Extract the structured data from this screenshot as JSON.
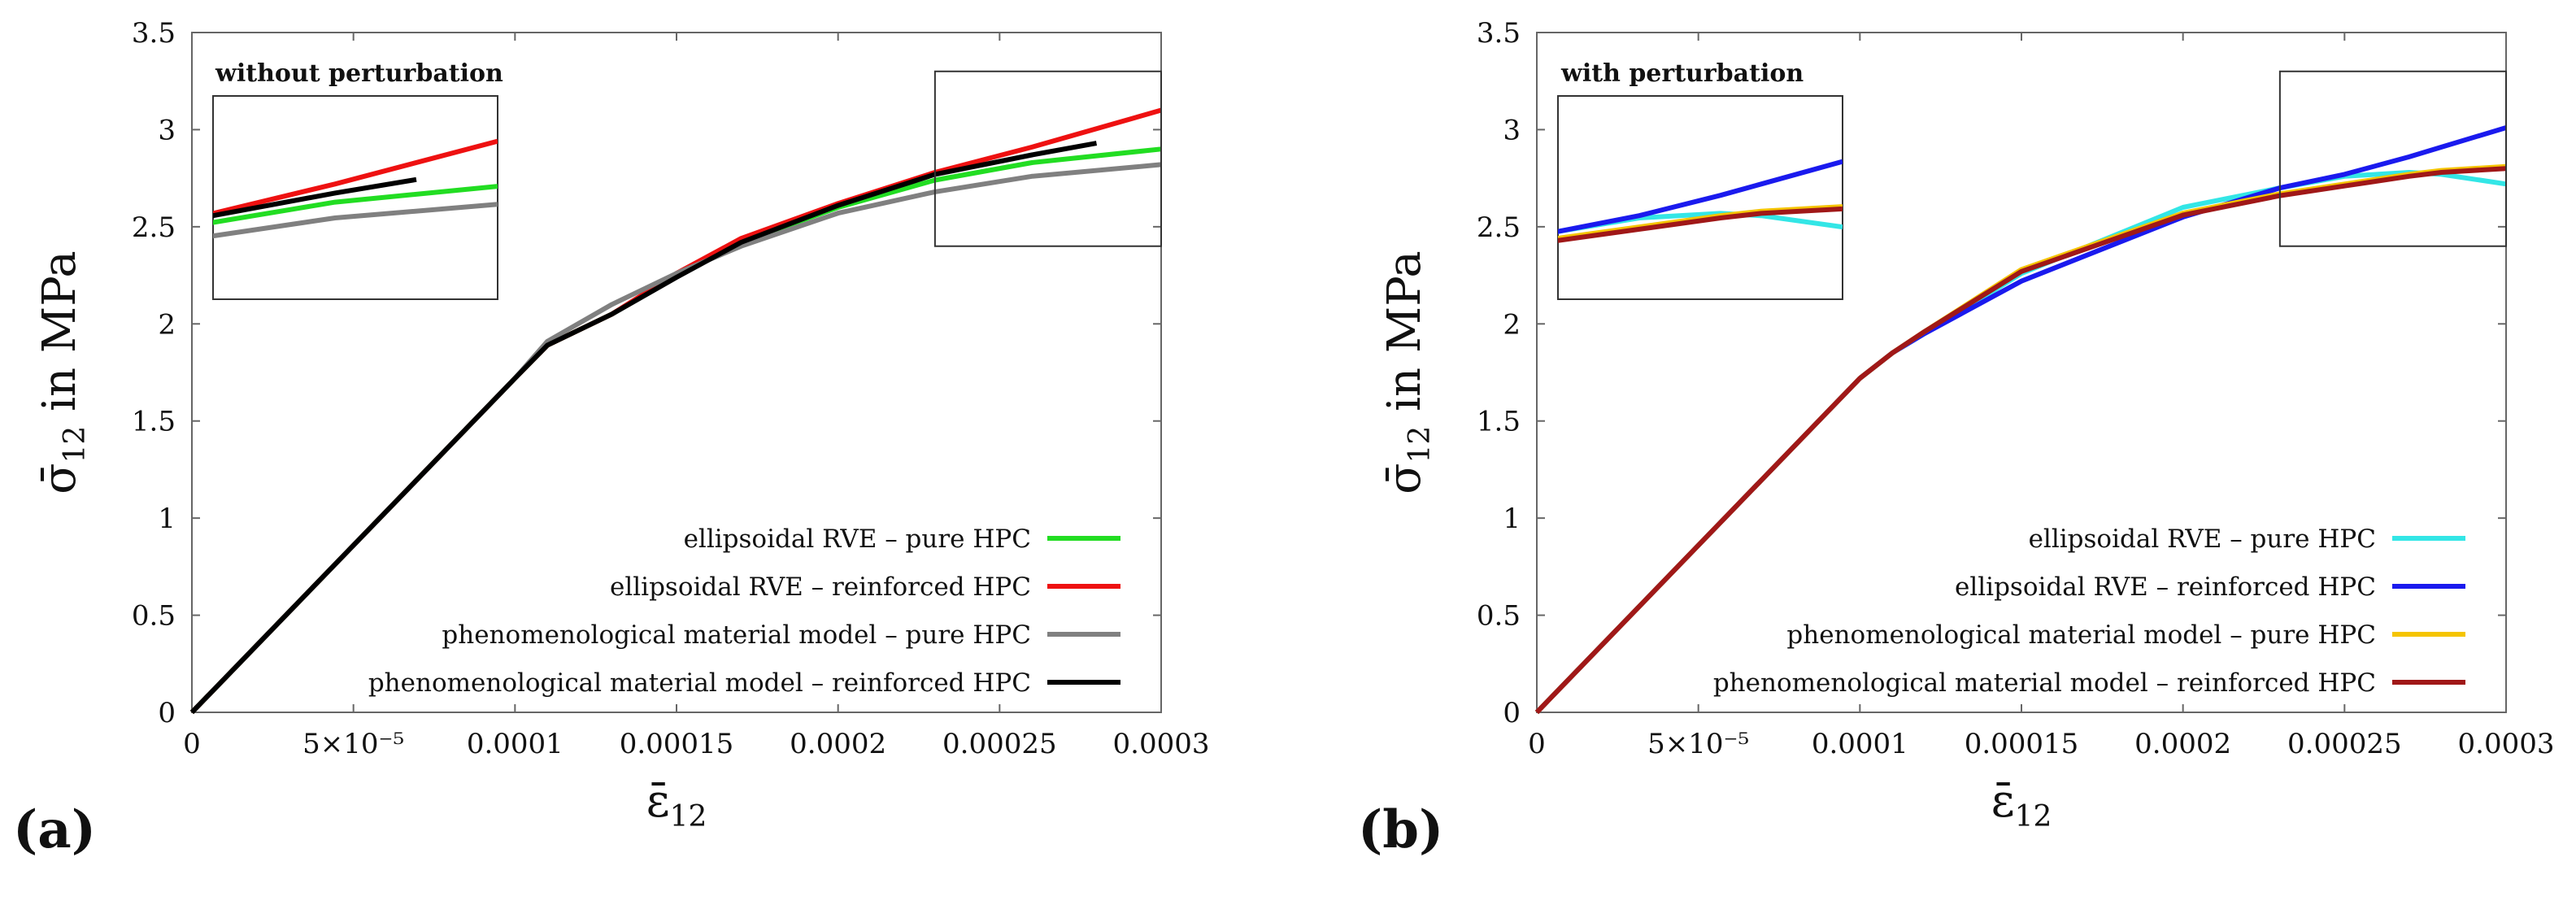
{
  "figure": {
    "panel_labels": [
      "(a)",
      "(b)"
    ]
  },
  "chart_data": [
    {
      "type": "line",
      "panel": "(a)",
      "title": "",
      "xlabel": "ε̄12",
      "ylabel": "σ̄12 in MPa",
      "xlim": [
        0,
        0.0003
      ],
      "ylim": [
        0,
        3.5
      ],
      "xticks": [
        0,
        5e-05,
        0.0001,
        0.00015,
        0.0002,
        0.00025,
        0.0003
      ],
      "xtick_labels": [
        "0",
        "5×10⁻⁵",
        "0.0001",
        "0.00015",
        "0.0002",
        "0.00025",
        "0.0003"
      ],
      "yticks": [
        0,
        0.5,
        1,
        1.5,
        2,
        2.5,
        3,
        3.5
      ],
      "ytick_labels": [
        "0",
        "0.5",
        "1",
        "1.5",
        "2",
        "2.5",
        "3",
        "3.5"
      ],
      "legend_position": "bottom-right",
      "series": [
        {
          "name": "ellipsoidal RVE – pure HPC",
          "color": "#22dd22",
          "x": [
            0,
            5e-05,
            0.0001,
            0.00011,
            0.00013,
            0.00015,
            0.00017,
            0.0002,
            0.00023,
            0.00026,
            0.0003
          ],
          "y": [
            0,
            0.86,
            1.72,
            1.89,
            2.05,
            2.25,
            2.42,
            2.6,
            2.74,
            2.83,
            2.9
          ]
        },
        {
          "name": "ellipsoidal RVE – reinforced HPC",
          "color": "#ee1111",
          "x": [
            0,
            5e-05,
            0.0001,
            0.00011,
            0.00013,
            0.00015,
            0.00017,
            0.0002,
            0.00023,
            0.00026,
            0.0003
          ],
          "y": [
            0,
            0.86,
            1.72,
            1.89,
            2.05,
            2.26,
            2.44,
            2.62,
            2.78,
            2.91,
            3.1
          ]
        },
        {
          "name": "phenomenological material model – pure HPC",
          "color": "#808080",
          "x": [
            0,
            5e-05,
            0.0001,
            0.00011,
            0.00013,
            0.00015,
            0.00017,
            0.0002,
            0.00023,
            0.00026,
            0.0003
          ],
          "y": [
            0,
            0.86,
            1.72,
            1.91,
            2.1,
            2.26,
            2.4,
            2.57,
            2.68,
            2.76,
            2.82
          ]
        },
        {
          "name": "phenomenological material model – reinforced HPC",
          "color": "#000000",
          "x": [
            0,
            5e-05,
            0.0001,
            0.00011,
            0.00013,
            0.00015,
            0.00017,
            0.0002,
            0.00023,
            0.00026,
            0.00028
          ],
          "y": [
            0,
            0.86,
            1.72,
            1.89,
            2.05,
            2.24,
            2.42,
            2.61,
            2.77,
            2.87,
            2.93
          ]
        }
      ],
      "inset": {
        "title": "without perturbation",
        "xlim": [
          0.00023,
          0.0003
        ],
        "ylim": [
          2.4,
          3.3
        ]
      }
    },
    {
      "type": "line",
      "panel": "(b)",
      "title": "",
      "xlabel": "ε̄12",
      "ylabel": "σ̄12 in MPa",
      "xlim": [
        0,
        0.0003
      ],
      "ylim": [
        0,
        3.5
      ],
      "xticks": [
        0,
        5e-05,
        0.0001,
        0.00015,
        0.0002,
        0.00025,
        0.0003
      ],
      "xtick_labels": [
        "0",
        "5×10⁻⁵",
        "0.0001",
        "0.00015",
        "0.0002",
        "0.00025",
        "0.0003"
      ],
      "yticks": [
        0,
        0.5,
        1,
        1.5,
        2,
        2.5,
        3,
        3.5
      ],
      "ytick_labels": [
        "0",
        "0.5",
        "1",
        "1.5",
        "2",
        "2.5",
        "3",
        "3.5"
      ],
      "legend_position": "bottom-right",
      "series": [
        {
          "name": "ellipsoidal RVE – pure HPC",
          "color": "#33e6e6",
          "x": [
            0,
            5e-05,
            0.0001,
            0.00011,
            0.00012,
            0.00015,
            0.0002,
            0.00023,
            0.00025,
            0.00027,
            0.00028,
            0.0003
          ],
          "y": [
            0,
            0.86,
            1.72,
            1.85,
            1.95,
            2.26,
            2.6,
            2.7,
            2.76,
            2.78,
            2.77,
            2.72
          ]
        },
        {
          "name": "ellipsoidal RVE – reinforced HPC",
          "color": "#1a1aee",
          "x": [
            0,
            5e-05,
            0.0001,
            0.00011,
            0.00012,
            0.00015,
            0.0002,
            0.00023,
            0.00025,
            0.00027,
            0.00028,
            0.0003
          ],
          "y": [
            0,
            0.86,
            1.72,
            1.85,
            1.95,
            2.22,
            2.55,
            2.7,
            2.77,
            2.86,
            2.91,
            3.01
          ]
        },
        {
          "name": "phenomenological material model – pure HPC",
          "color": "#f5c400",
          "x": [
            0,
            5e-05,
            0.0001,
            0.00011,
            0.00012,
            0.00015,
            0.0002,
            0.00023,
            0.00025,
            0.00027,
            0.00028,
            0.0003
          ],
          "y": [
            0,
            0.86,
            1.72,
            1.85,
            1.96,
            2.28,
            2.57,
            2.67,
            2.72,
            2.77,
            2.79,
            2.81
          ]
        },
        {
          "name": "phenomenological material model – reinforced HPC",
          "color": "#a01818",
          "x": [
            0,
            5e-05,
            0.0001,
            0.00011,
            0.00012,
            0.00015,
            0.0002,
            0.00023,
            0.00025,
            0.00027,
            0.00028,
            0.0003
          ],
          "y": [
            0,
            0.86,
            1.72,
            1.85,
            1.96,
            2.27,
            2.56,
            2.66,
            2.71,
            2.76,
            2.78,
            2.8
          ]
        }
      ],
      "inset": {
        "title": "with perturbation",
        "xlim": [
          0.00023,
          0.0003
        ],
        "ylim": [
          2.4,
          3.3
        ]
      }
    }
  ]
}
